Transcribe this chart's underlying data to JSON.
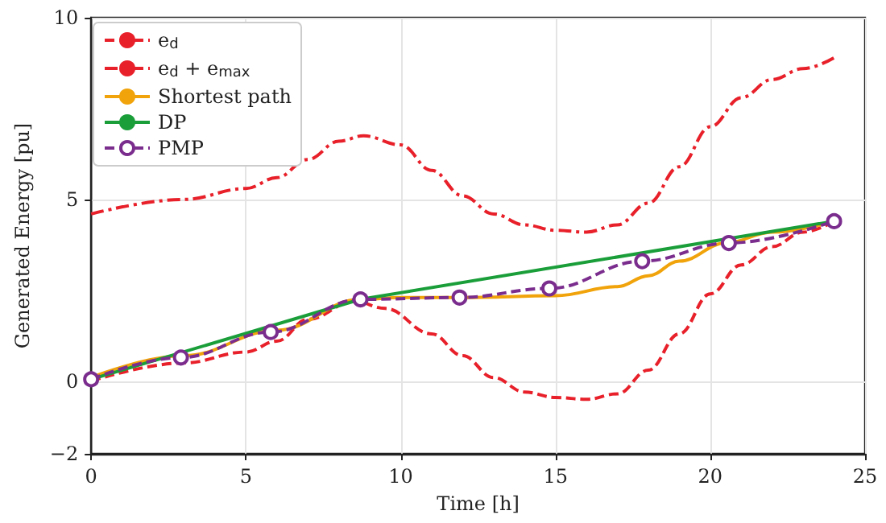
{
  "chart_data": {
    "type": "line",
    "xlabel": "Time [h]",
    "ylabel": "Generated Energy [pu]",
    "xlim": [
      0,
      25
    ],
    "xticks": [
      0,
      5,
      10,
      15,
      20,
      25
    ],
    "ylim": [
      -2,
      10
    ],
    "yticks": [
      -2,
      0,
      5,
      10
    ],
    "grid": true,
    "legend": "top left",
    "series": [
      {
        "name": "e$_{d}$",
        "color": "#e8202a",
        "line_style": "dashed",
        "marker": "none",
        "x": [
          0,
          3,
          5,
          6,
          7,
          8.5,
          9.5,
          11,
          12,
          13,
          14,
          15,
          16,
          17,
          18,
          19,
          20,
          21,
          22,
          23,
          24
        ],
        "values": [
          0,
          0.5,
          0.8,
          1.1,
          1.7,
          2.2,
          2.0,
          1.3,
          0.7,
          0.1,
          -0.3,
          -0.45,
          -0.5,
          -0.35,
          0.3,
          1.3,
          2.4,
          3.2,
          3.7,
          4.1,
          4.4
        ]
      },
      {
        "name": "e$_{d}$ + e$_{max}$",
        "color": "#e8202a",
        "line_style": "dashdot",
        "marker": "none",
        "x": [
          0,
          3,
          5,
          6,
          7,
          8,
          8.8,
          10,
          11,
          12,
          13,
          14,
          15,
          16,
          17,
          18,
          19,
          20,
          21,
          22,
          23,
          24
        ],
        "values": [
          4.6,
          5.0,
          5.3,
          5.6,
          6.1,
          6.6,
          6.75,
          6.5,
          5.8,
          5.1,
          4.6,
          4.3,
          4.15,
          4.1,
          4.3,
          4.9,
          5.9,
          7.0,
          7.8,
          8.3,
          8.6,
          8.9
        ]
      },
      {
        "name": "Shortest path",
        "color": "#f0a30a",
        "line_style": "solid",
        "marker": "none",
        "x": [
          0,
          3,
          6,
          8.7,
          10,
          12,
          15,
          17,
          18,
          19,
          20.5,
          22,
          24
        ],
        "values": [
          0.1,
          0.7,
          1.4,
          2.25,
          2.3,
          2.3,
          2.35,
          2.6,
          2.9,
          3.3,
          3.8,
          4.1,
          4.4
        ]
      },
      {
        "name": "DP",
        "color": "#1a9e3a",
        "line_style": "solid",
        "marker": "none",
        "x": [
          0,
          8.7,
          24
        ],
        "values": [
          0.05,
          2.25,
          4.4
        ]
      },
      {
        "name": "PMP",
        "color": "#7b2d8e",
        "line_style": "dashed",
        "marker": "circle",
        "x": [
          0,
          2.9,
          5.8,
          8.7,
          11.9,
          14.8,
          17.8,
          20.6,
          24
        ],
        "values": [
          0.05,
          0.65,
          1.35,
          2.25,
          2.3,
          2.55,
          3.3,
          3.8,
          4.4
        ]
      }
    ]
  }
}
